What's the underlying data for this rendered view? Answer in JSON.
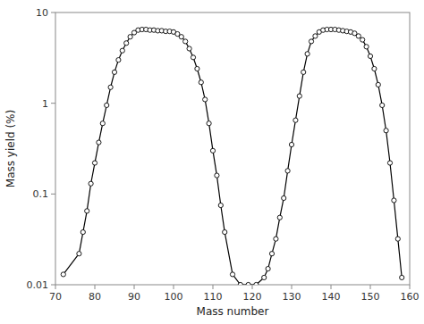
{
  "chart_data": {
    "type": "line",
    "xlabel": "Mass number",
    "ylabel": "Mass yield (%)",
    "x": [
      72,
      76,
      77,
      78,
      79,
      80,
      81,
      82,
      83,
      84,
      85,
      86,
      87,
      88,
      89,
      90,
      91,
      92,
      93,
      94,
      95,
      96,
      97,
      98,
      99,
      100,
      101,
      102,
      103,
      104,
      105,
      106,
      107,
      108,
      109,
      110,
      111,
      112,
      113,
      115,
      117,
      119,
      121,
      123,
      124,
      125,
      126,
      127,
      128,
      129,
      130,
      131,
      132,
      133,
      134,
      135,
      136,
      137,
      138,
      139,
      140,
      141,
      142,
      143,
      144,
      145,
      146,
      147,
      148,
      149,
      150,
      151,
      152,
      153,
      154,
      155,
      156,
      157,
      158
    ],
    "values": [
      0.013,
      0.022,
      0.038,
      0.065,
      0.13,
      0.22,
      0.37,
      0.6,
      0.95,
      1.5,
      2.2,
      3.0,
      3.8,
      4.6,
      5.4,
      6.0,
      6.4,
      6.5,
      6.5,
      6.4,
      6.4,
      6.3,
      6.3,
      6.2,
      6.2,
      6.1,
      5.8,
      5.4,
      4.8,
      4.0,
      3.2,
      2.4,
      1.7,
      1.1,
      0.6,
      0.3,
      0.16,
      0.075,
      0.038,
      0.013,
      0.01,
      0.01,
      0.01,
      0.012,
      0.015,
      0.022,
      0.032,
      0.055,
      0.09,
      0.18,
      0.35,
      0.65,
      1.2,
      2.2,
      3.5,
      4.8,
      5.5,
      6.1,
      6.4,
      6.5,
      6.5,
      6.5,
      6.4,
      6.3,
      6.2,
      6.1,
      5.9,
      5.5,
      5.0,
      4.2,
      3.3,
      2.4,
      1.6,
      0.95,
      0.5,
      0.22,
      0.085,
      0.032,
      0.012
    ],
    "color": "#000000",
    "marker": "circle",
    "xlim": [
      70,
      160
    ],
    "ylim": [
      0.01,
      10
    ],
    "xticks": [
      70,
      80,
      90,
      100,
      110,
      120,
      130,
      140,
      150,
      160
    ],
    "yticks": [
      0.01,
      0.1,
      1,
      10
    ],
    "log": "y",
    "grid": false
  }
}
